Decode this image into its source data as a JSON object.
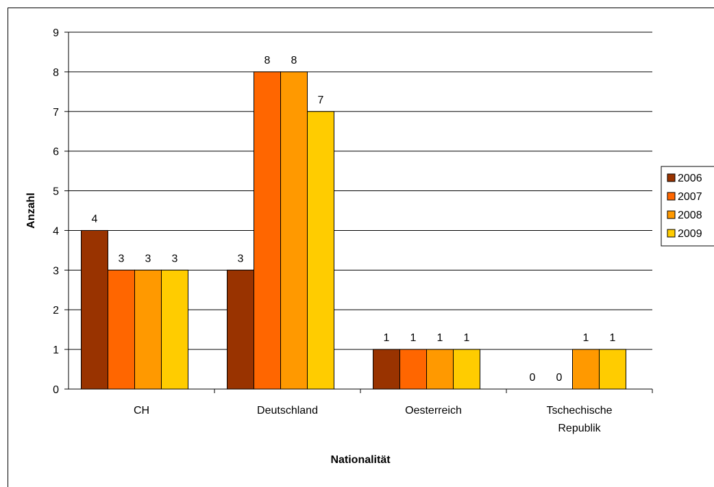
{
  "chart_data": {
    "type": "bar",
    "title": "",
    "xlabel": "Nationalität",
    "ylabel": "Anzahl",
    "categories": [
      [
        "CH"
      ],
      [
        "Deutschland"
      ],
      [
        "Oesterreich"
      ],
      [
        "Tschechische",
        "Republik"
      ]
    ],
    "ylim": [
      0,
      9
    ],
    "yticks": [
      "0",
      "1",
      "2",
      "3",
      "4",
      "5",
      "6",
      "7",
      "8",
      "9"
    ],
    "grid": true,
    "legend_position": "right",
    "series": [
      {
        "name": "2006",
        "values": [
          4,
          3,
          1,
          0
        ],
        "color": "#993300"
      },
      {
        "name": "2007",
        "values": [
          3,
          8,
          1,
          0
        ],
        "color": "#FF6600"
      },
      {
        "name": "2008",
        "values": [
          3,
          8,
          1,
          1
        ],
        "color": "#FF9900"
      },
      {
        "name": "2009",
        "values": [
          3,
          7,
          1,
          1
        ],
        "color": "#FFCC00"
      }
    ]
  }
}
